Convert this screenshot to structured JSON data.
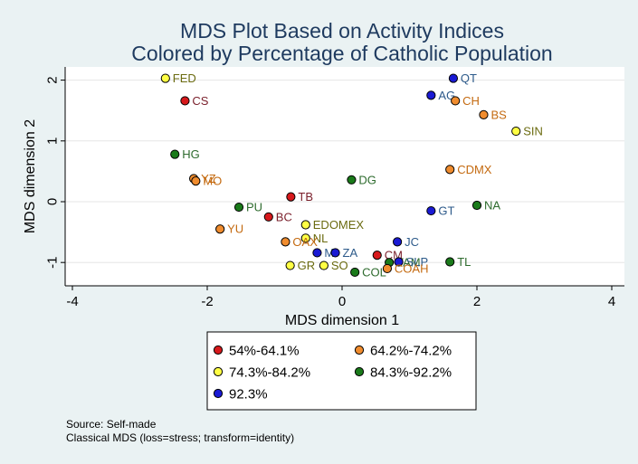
{
  "chart_data": {
    "type": "scatter",
    "title": [
      "MDS Plot Based on Activity Indices",
      "Colored by Percentage of Catholic Population"
    ],
    "xlabel": "MDS dimension 1",
    "ylabel": "MDS dimension 2",
    "xlim": [
      -4,
      4
    ],
    "ylim": [
      -1.3,
      2.25
    ],
    "xticks": [
      -4,
      -2,
      0,
      2,
      4
    ],
    "yticks": [
      -1,
      0,
      1,
      2
    ],
    "grid": "horizontal",
    "groups": [
      {
        "name": "54%-64.1%",
        "color": "#d7191c"
      },
      {
        "name": "64.2%-74.2%",
        "color": "#f08c2e"
      },
      {
        "name": "74.3%-84.2%",
        "color": "#ffff44"
      },
      {
        "name": "84.3%-92.2%",
        "color": "#1a7a1a"
      },
      {
        "name": "92.3%",
        "color": "#1a1ad4"
      }
    ],
    "label_colors": [
      "#7a1f2b",
      "#c46a10",
      "#6b6b10",
      "#2e6b2e",
      "#2d5a8a"
    ],
    "points": [
      {
        "label": "FED",
        "x": -2.62,
        "y": 2.03,
        "group": 2
      },
      {
        "label": "CS",
        "x": -2.33,
        "y": 1.66,
        "group": 0
      },
      {
        "label": "QT",
        "x": 1.65,
        "y": 2.03,
        "group": 4
      },
      {
        "label": "AG",
        "x": 1.32,
        "y": 1.75,
        "group": 4
      },
      {
        "label": "CH",
        "x": 1.68,
        "y": 1.66,
        "group": 1
      },
      {
        "label": "BS",
        "x": 2.1,
        "y": 1.43,
        "group": 1
      },
      {
        "label": "SIN",
        "x": 2.58,
        "y": 1.16,
        "group": 2
      },
      {
        "label": "HG",
        "x": -2.48,
        "y": 0.78,
        "group": 3
      },
      {
        "label": "CDMX",
        "x": 1.6,
        "y": 0.53,
        "group": 1
      },
      {
        "label": "YZ",
        "x": -2.2,
        "y": 0.38,
        "group": 1
      },
      {
        "label": "MO",
        "x": -2.17,
        "y": 0.34,
        "group": 1
      },
      {
        "label": "DG",
        "x": 0.14,
        "y": 0.36,
        "group": 3
      },
      {
        "label": "TB",
        "x": -0.76,
        "y": 0.08,
        "group": 0
      },
      {
        "label": "NA",
        "x": 2.0,
        "y": -0.06,
        "group": 3
      },
      {
        "label": "PU",
        "x": -1.53,
        "y": -0.09,
        "group": 3
      },
      {
        "label": "GT",
        "x": 1.32,
        "y": -0.15,
        "group": 4
      },
      {
        "label": "BC",
        "x": -1.09,
        "y": -0.25,
        "group": 0
      },
      {
        "label": "EDOMEX",
        "x": -0.54,
        "y": -0.38,
        "group": 2
      },
      {
        "label": "YU",
        "x": -1.81,
        "y": -0.45,
        "group": 1
      },
      {
        "label": "NL",
        "x": -0.54,
        "y": -0.6,
        "group": 2
      },
      {
        "label": "OAX",
        "x": -0.84,
        "y": -0.66,
        "group": 1
      },
      {
        "label": "JC",
        "x": 0.82,
        "y": -0.66,
        "group": 4
      },
      {
        "label": "MI",
        "x": -0.37,
        "y": -0.84,
        "group": 4
      },
      {
        "label": "ZA",
        "x": -0.1,
        "y": -0.84,
        "group": 4
      },
      {
        "label": "CM",
        "x": 0.52,
        "y": -0.88,
        "group": 0
      },
      {
        "label": "TL",
        "x": 1.6,
        "y": -0.99,
        "group": 3
      },
      {
        "label": "TAM",
        "x": 0.7,
        "y": -1.0,
        "group": 3
      },
      {
        "label": "SLP",
        "x": 0.84,
        "y": -0.99,
        "group": 4
      },
      {
        "label": "COAH",
        "x": 0.67,
        "y": -1.1,
        "group": 1
      },
      {
        "label": "GR",
        "x": -0.77,
        "y": -1.05,
        "group": 2
      },
      {
        "label": "SO",
        "x": -0.27,
        "y": -1.05,
        "group": 2
      },
      {
        "label": "COL",
        "x": 0.19,
        "y": -1.16,
        "group": 3
      }
    ]
  },
  "notes": [
    "Source: Self-made",
    "Classical MDS (loss=stress; transform=identity)"
  ]
}
